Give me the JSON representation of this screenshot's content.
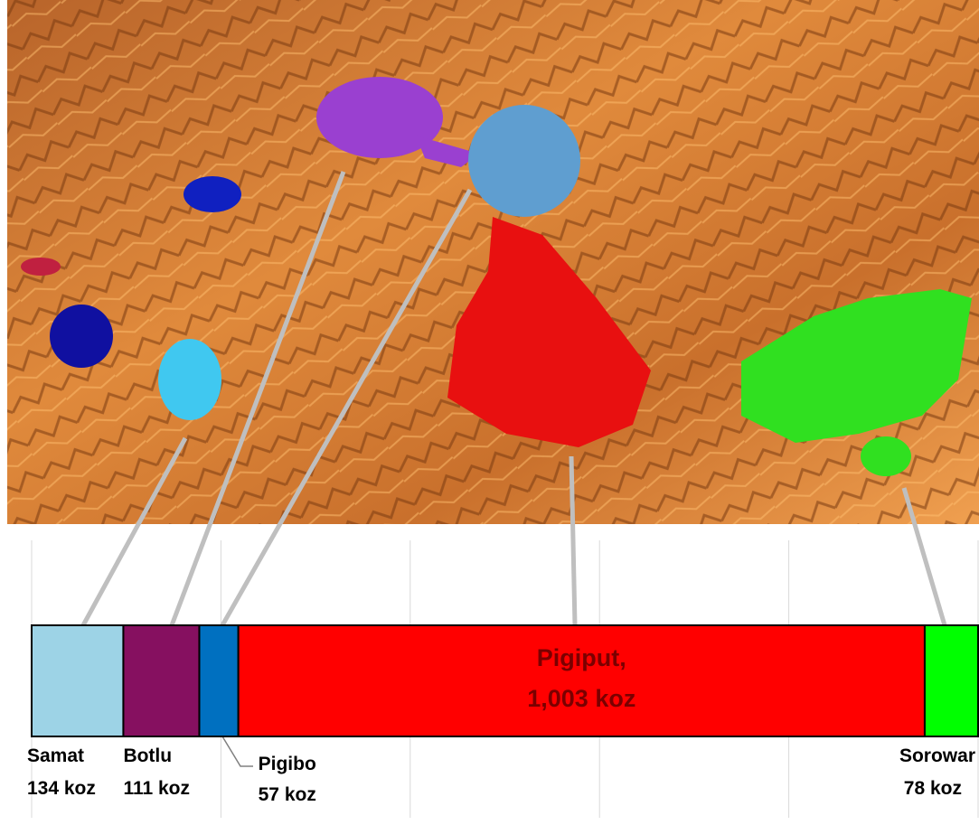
{
  "chart_data": {
    "type": "stacked_bar",
    "orientation": "horizontal",
    "xlim": [
      0,
      1383
    ],
    "xticks": [
      0,
      276.6,
      553.2,
      829.8,
      1106.4,
      1383
    ],
    "grid": true,
    "series": [
      {
        "name": "Samat",
        "color": "#9dd3e6",
        "values": [
          134
        ],
        "value_labels": [
          "134 koz"
        ]
      },
      {
        "name": "Botlu",
        "color": "#861060",
        "values": [
          111
        ],
        "value_labels": [
          "111 koz"
        ]
      },
      {
        "name": "Pigibo",
        "color": "#0070c0",
        "values": [
          57
        ],
        "value_labels": [
          "57 koz"
        ]
      },
      {
        "name": "Pigiput,",
        "color": "#ff0000",
        "values": [
          1003
        ],
        "value_labels": [
          "1,003 koz"
        ]
      },
      {
        "name": "Sorowar",
        "color": "#00ff00",
        "values": [
          78
        ],
        "value_labels": [
          "78 koz"
        ]
      }
    ]
  }
}
